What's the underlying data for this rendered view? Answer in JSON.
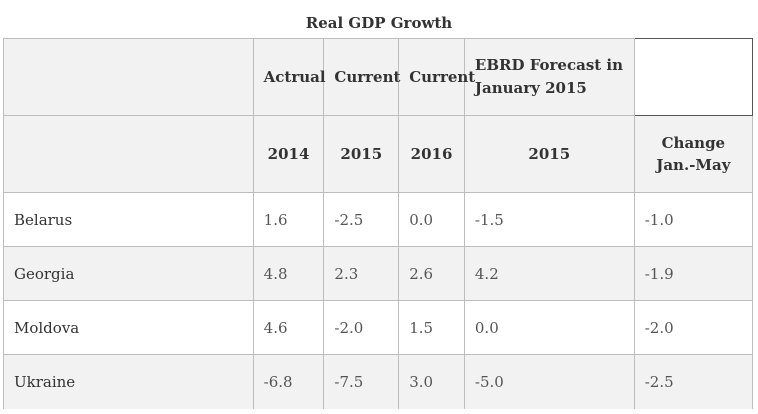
{
  "table": {
    "caption": "Real GDP Growth",
    "header_row1": [
      "",
      "Actrual",
      "Current",
      "Current",
      "EBRD Forecast in January 2015",
      ""
    ],
    "header_row2": [
      "",
      "2014",
      "2015",
      "2016",
      "2015",
      "Change Jan.-May"
    ],
    "rows": [
      [
        "Belarus",
        "1.6",
        "-2.5",
        "0.0",
        "-1.5",
        "-1.0"
      ],
      [
        "Georgia",
        "4.8",
        "2.3",
        "2.6",
        "4.2",
        "-1.9"
      ],
      [
        "Moldova",
        "4.6",
        "-2.0",
        "1.5",
        "0.0",
        "-2.0"
      ],
      [
        "Ukraine",
        "-6.8",
        "-7.5",
        "3.0",
        "-5.0",
        "-2.5"
      ]
    ]
  }
}
